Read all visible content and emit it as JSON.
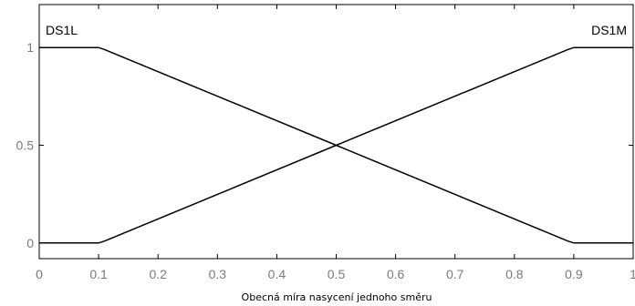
{
  "chart_data": {
    "type": "line",
    "xlabel": "Obecná míra nasycení jednoho směru",
    "ylabel": "",
    "xlim": [
      0,
      1
    ],
    "ylim": [
      -0.08,
      1.22
    ],
    "x_ticks": [
      "0",
      "0.1",
      "0.2",
      "0.3",
      "0.4",
      "0.5",
      "0.6",
      "0.7",
      "0.8",
      "0.9",
      "1"
    ],
    "y_ticks": [
      "0",
      "0.5",
      "1"
    ],
    "grid": false,
    "series": [
      {
        "name": "DS1L",
        "color": "#000000",
        "points": [
          [
            0,
            1
          ],
          [
            0.1,
            1
          ],
          [
            0.11,
            0.99
          ],
          [
            0.5,
            0.5
          ],
          [
            0.89,
            0.01
          ],
          [
            0.9,
            0
          ],
          [
            1,
            0
          ]
        ]
      },
      {
        "name": "DS1M",
        "color": "#000000",
        "points": [
          [
            0,
            0
          ],
          [
            0.1,
            0
          ],
          [
            0.11,
            0.01
          ],
          [
            0.5,
            0.5
          ],
          [
            0.89,
            0.99
          ],
          [
            0.9,
            1
          ],
          [
            1,
            1
          ]
        ]
      }
    ]
  }
}
